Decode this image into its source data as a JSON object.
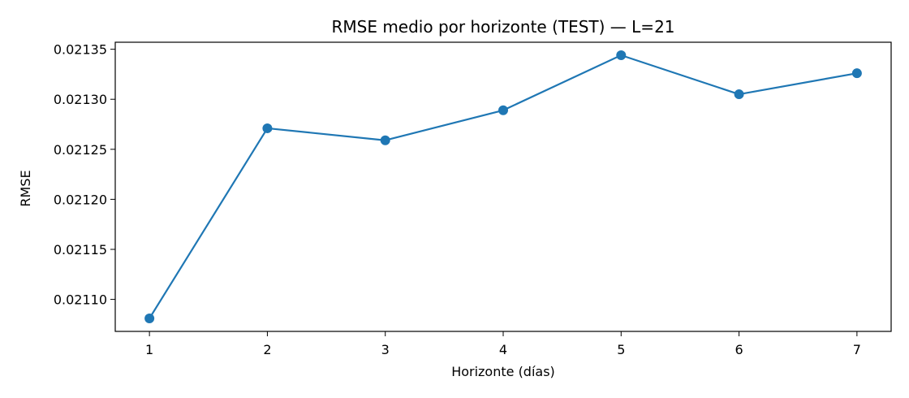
{
  "chart_data": {
    "type": "line",
    "title": "RMSE medio por horizonte (TEST) — L=21",
    "xlabel": "Horizonte (días)",
    "ylabel": "RMSE",
    "x": [
      1,
      2,
      3,
      4,
      5,
      6,
      7
    ],
    "series": [
      {
        "values": [
          0.021081,
          0.021271,
          0.021259,
          0.021289,
          0.021344,
          0.021305,
          0.021326
        ],
        "color": "#1f77b4",
        "marker": "circle"
      }
    ],
    "xlim": [
      0.71,
      7.29
    ],
    "ylim": [
      0.021068,
      0.021357
    ],
    "x_ticks": [
      1,
      2,
      3,
      4,
      5,
      6,
      7
    ],
    "x_tick_labels": [
      "1",
      "2",
      "3",
      "4",
      "5",
      "6",
      "7"
    ],
    "y_ticks": [
      0.0211,
      0.02115,
      0.0212,
      0.02125,
      0.0213,
      0.02135
    ],
    "y_tick_labels": [
      "0.02110",
      "0.02115",
      "0.02120",
      "0.02125",
      "0.02130",
      "0.02135"
    ],
    "grid": false,
    "legend": false
  }
}
